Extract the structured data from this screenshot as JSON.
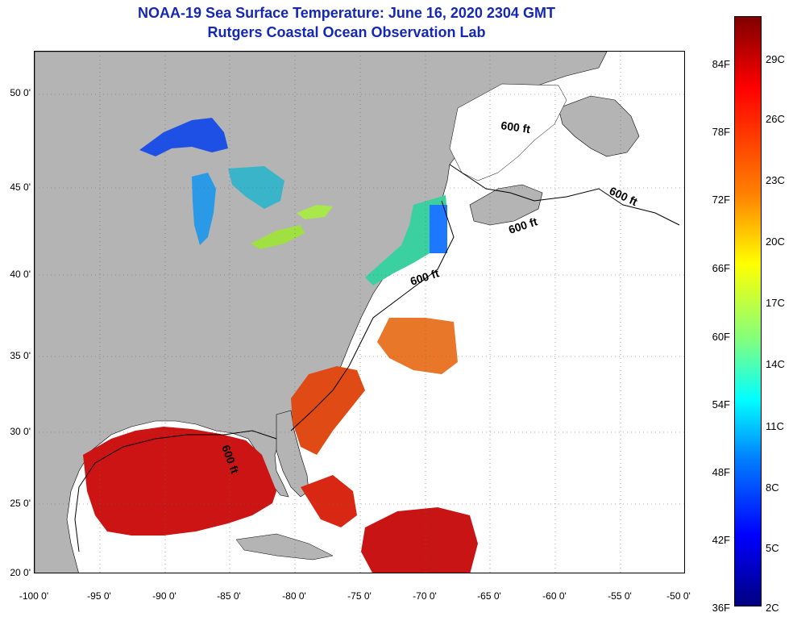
{
  "title": {
    "line1": "NOAA-19 Sea Surface Temperature:  June 16, 2020 2304 GMT",
    "line2": "Rutgers Coastal Ocean Observation Lab"
  },
  "map": {
    "lat_labels": [
      "50 0'",
      "45 0'",
      "40 0'",
      "35 0'",
      "30 0'",
      "25 0'",
      "20 0'"
    ],
    "lon_labels": [
      "-100 0'",
      "-95 0'",
      "-90 0'",
      "-85 0'",
      "-80 0'",
      "-75 0'",
      "-70 0'",
      "-65 0'",
      "-60 0'",
      "-55 0'",
      "-50 0'"
    ],
    "lat_range": [
      20,
      52.5
    ],
    "lon_range": [
      -100,
      -50
    ],
    "depth_contour_label": "600 ft",
    "colors": {
      "land": "#b4b4b4",
      "no_data": "#ffffff",
      "gulf_sst": "#cc1414",
      "great_lakes": "#1e64ff"
    }
  },
  "colorbar": {
    "fahrenheit_labels": [
      "84F",
      "78F",
      "72F",
      "66F",
      "60F",
      "54F",
      "48F",
      "42F",
      "36F"
    ],
    "celsius_labels": [
      "29C",
      "26C",
      "23C",
      "20C",
      "17C",
      "14C",
      "11C",
      "8C",
      "5C",
      "2C"
    ],
    "colormap": "jet",
    "range_c": [
      2,
      31
    ]
  }
}
